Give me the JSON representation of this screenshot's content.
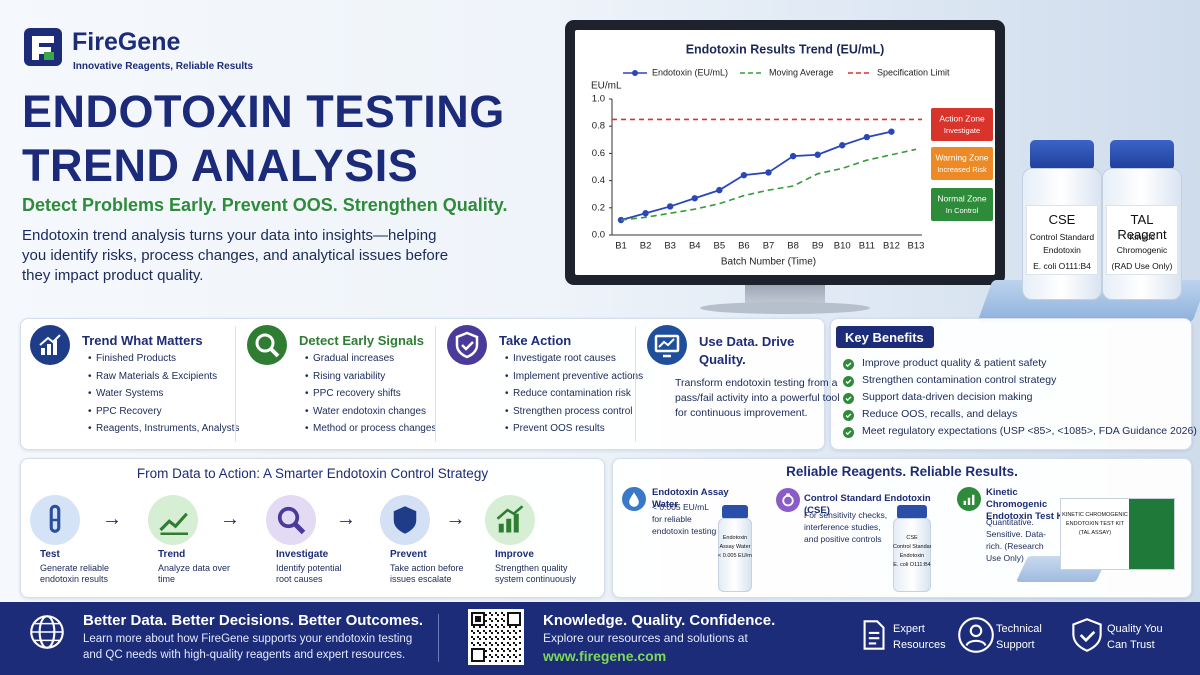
{
  "header": {
    "brand": "FireGene",
    "tagline": "Innovative Reagents, Reliable Results",
    "title_line1": "ENDOTOXIN TESTING",
    "title_line2": "TREND ANALYSIS",
    "subtitle": "Detect Problems Early. Prevent OOS. Strengthen Quality.",
    "intro": "Endotoxin trend analysis turns your data into insights—helping you identify risks, process changes, and analytical issues before they impact product quality."
  },
  "chart_data": {
    "type": "line",
    "title": "Endotoxin Results Trend (EU/mL)",
    "y_label": "EU/mL",
    "x_label": "Batch Number (Time)",
    "categories": [
      "B1",
      "B2",
      "B3",
      "B4",
      "B5",
      "B6",
      "B7",
      "B8",
      "B9",
      "B10",
      "B11",
      "B12",
      "B13"
    ],
    "series": [
      {
        "name": "Endotoxin (EU/mL)",
        "color": "#2a47b8",
        "style": "solid",
        "marker": "circle",
        "values": [
          0.11,
          0.16,
          0.21,
          0.27,
          0.33,
          0.44,
          0.46,
          0.58,
          0.59,
          0.66,
          0.72,
          0.76,
          null
        ]
      },
      {
        "name": "Moving Average",
        "color": "#3a9a3a",
        "style": "dashed",
        "marker": "none",
        "values": [
          0.11,
          0.13,
          0.16,
          0.19,
          0.23,
          0.29,
          0.33,
          0.36,
          0.45,
          0.49,
          0.55,
          0.59,
          0.63
        ]
      }
    ],
    "reference_lines": [
      {
        "name": "Specification Limit",
        "value": 0.85,
        "color": "#d9342b",
        "style": "dashed"
      }
    ],
    "zones": [
      {
        "label": "Action Zone",
        "sublabel": "Investigate",
        "color": "#d9342b"
      },
      {
        "label": "Warning Zone",
        "sublabel": "Increased Risk",
        "color": "#ee8a25"
      },
      {
        "label": "Normal Zone",
        "sublabel": "In Control",
        "color": "#2e8b3a"
      }
    ],
    "ylim": [
      0,
      1
    ],
    "yticks": [
      {
        "value": 0,
        "label": "0.0"
      },
      0.2,
      0.4,
      0.6,
      0.8,
      {
        "value": 1,
        "label": "1.0"
      }
    ],
    "grid": false,
    "legend": "top"
  },
  "vials": [
    {
      "lines": [
        "CSE",
        "Control Standard",
        "Endotoxin",
        "E. coli O111:B4"
      ]
    },
    {
      "lines": [
        "TAL Reagent",
        "Kinetic",
        "Chromogenic",
        "(RAD Use Only)"
      ]
    }
  ],
  "cards": [
    {
      "title": "Trend What Matters",
      "items": [
        "Finished Products",
        "Raw Materials & Excipients",
        "Water Systems",
        "PPC Recovery",
        "Reagents, Instruments, Analysts"
      ]
    },
    {
      "title": "Detect Early Signals",
      "items": [
        "Gradual increases",
        "Rising variability",
        "PPC recovery shifts",
        "Water endotoxin changes",
        "Method or process changes"
      ]
    },
    {
      "title": "Take Action",
      "items": [
        "Investigate root causes",
        "Implement preventive actions",
        "Reduce contamination risk",
        "Strengthen process control",
        "Prevent OOS results"
      ]
    },
    {
      "title": "Use Data. Drive Quality.",
      "text": "Transform endotoxin testing from a pass/fail activity into a powerful tool for continuous improvement."
    }
  ],
  "key_benefits": {
    "title": "Key Benefits",
    "items": [
      "Improve product quality & patient safety",
      "Strengthen contamination control strategy",
      "Support data-driven decision making",
      "Reduce OOS, recalls, and delays",
      "Meet regulatory expectations (USP <85>, <1085>, FDA Guidance 2026)"
    ]
  },
  "flow": {
    "title": "From Data to Action: A Smarter Endotoxin Control Strategy",
    "steps": [
      {
        "title": "Test",
        "text": "Generate reliable endotoxin results"
      },
      {
        "title": "Trend",
        "text": "Analyze data over time"
      },
      {
        "title": "Investigate",
        "text": "Identify potential root causes"
      },
      {
        "title": "Prevent",
        "text": "Take action before issues escalate"
      },
      {
        "title": "Improve",
        "text": "Strengthen quality system continuously"
      }
    ]
  },
  "products": {
    "title": "Reliable Reagents. Reliable Results.",
    "items": [
      {
        "name": "Endotoxin Assay Water",
        "text": "< 0.005 EU/mL for reliable endotoxin testing",
        "label": [
          "Endotoxin",
          "Assay Water",
          "< 0.005 EU/mL"
        ]
      },
      {
        "name": "Control Standard Endotoxin (CSE)",
        "text": "For sensitivity checks, interference studies, and positive controls",
        "label": [
          "CSE",
          "Control Standard",
          "Endotoxin",
          "E. coli O111:B4"
        ]
      },
      {
        "name": "Kinetic Chromogenic Endotoxin Test Kit",
        "text": "Quantitative. Sensitive. Data-rich. (Research Use Only)",
        "label": [
          "KINETIC CHROMOGENIC",
          "ENDOTOXIN TEST KIT",
          "(TAL ASSAY)"
        ]
      }
    ]
  },
  "footer": {
    "headline": "Better Data. Better Decisions. Better Outcomes.",
    "text": "Learn more about how FireGene supports your endotoxin testing and QC needs with high-quality reagents and expert resources.",
    "tagline": "Knowledge. Quality. Confidence.",
    "explore": "Explore our resources and solutions at",
    "url": "www.firegene.com",
    "links": [
      "Expert Resources",
      "Technical Support",
      "Quality You Can Trust"
    ]
  }
}
